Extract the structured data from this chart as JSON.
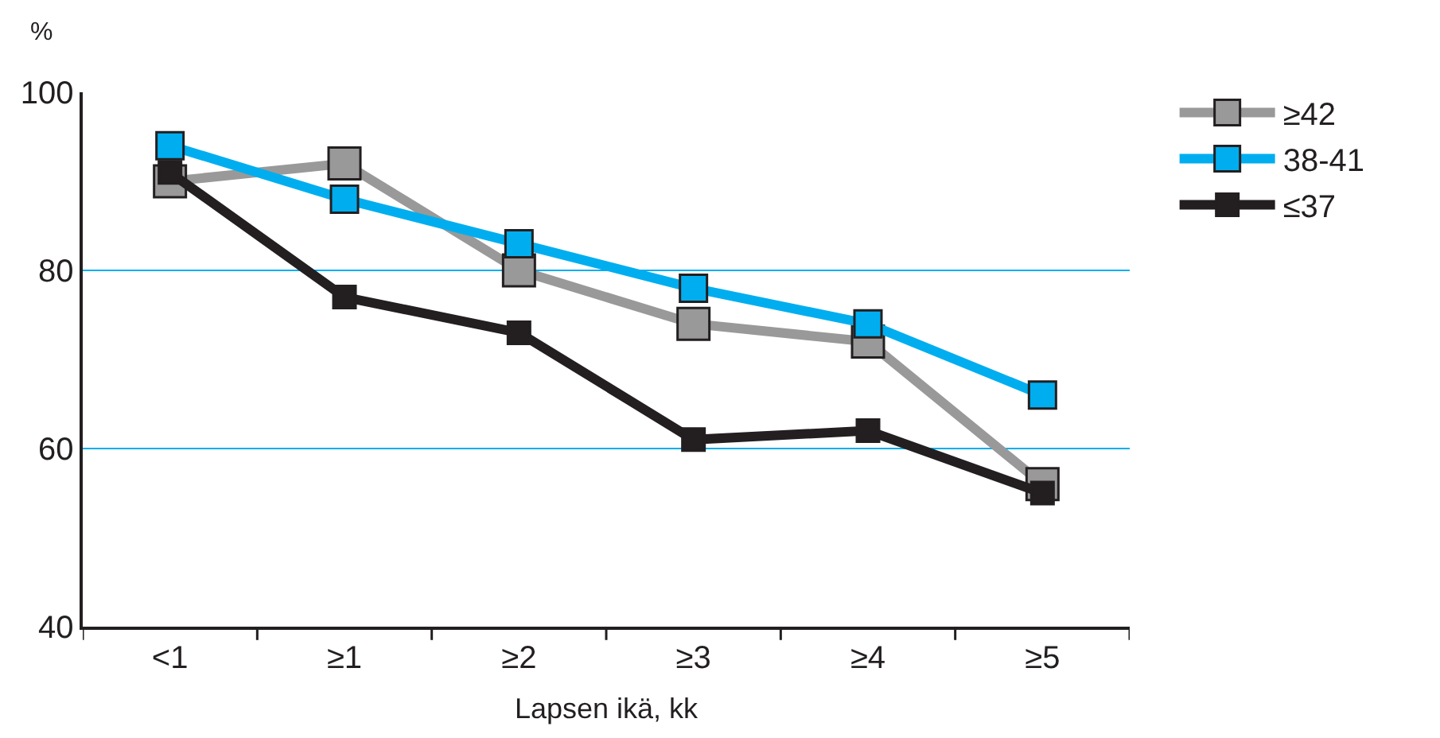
{
  "chart_data": {
    "type": "line",
    "xlabel": "Lapsen ikä, kk",
    "ylabel": "%",
    "categories": [
      "<1",
      "≥1",
      "≥2",
      "≥3",
      "≥4",
      "≥5"
    ],
    "series": [
      {
        "name": "≥42",
        "color": "#999999",
        "values": [
          90,
          92,
          80,
          74,
          72,
          56
        ]
      },
      {
        "name": "38-41",
        "color": "#00aeef",
        "values": [
          94,
          88,
          83,
          78,
          74,
          66
        ]
      },
      {
        "name": "≤37",
        "color": "#231f20",
        "values": [
          91,
          77,
          73,
          61,
          62,
          55
        ]
      }
    ],
    "ylim": [
      40,
      100
    ],
    "yticks": [
      40,
      60,
      80,
      100
    ],
    "grid": "y",
    "legend": "right",
    "marker": "square",
    "line_style": "solid"
  }
}
